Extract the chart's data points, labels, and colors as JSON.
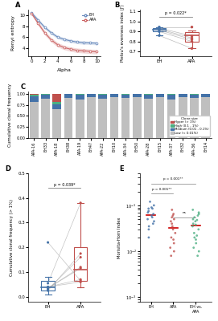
{
  "panel_A": {
    "alpha": [
      0,
      1,
      2,
      3,
      4,
      5,
      6,
      7,
      8,
      9,
      10
    ],
    "EH_mean": [
      10.4,
      9.1,
      7.8,
      6.8,
      6.0,
      5.6,
      5.3,
      5.1,
      5.0,
      4.95,
      4.9
    ],
    "EH_upper": [
      10.7,
      9.4,
      8.1,
      7.1,
      6.3,
      5.9,
      5.6,
      5.4,
      5.3,
      5.25,
      5.2
    ],
    "EH_lower": [
      10.1,
      8.8,
      7.5,
      6.5,
      5.7,
      5.3,
      5.0,
      4.8,
      4.7,
      4.65,
      4.6
    ],
    "APA_mean": [
      10.3,
      8.5,
      6.8,
      5.5,
      4.6,
      4.1,
      3.8,
      3.6,
      3.5,
      3.4,
      3.35
    ],
    "APA_upper": [
      10.6,
      8.9,
      7.2,
      5.9,
      5.0,
      4.5,
      4.2,
      4.0,
      3.9,
      3.8,
      3.75
    ],
    "APA_lower": [
      10.0,
      8.1,
      6.4,
      5.1,
      4.2,
      3.7,
      3.4,
      3.2,
      3.1,
      3.0,
      2.95
    ],
    "EH_color": "#6B8CBE",
    "APA_color": "#CC6666",
    "ylabel": "Renyi entropy",
    "xlabel": "Alpha",
    "ylim": [
      2.5,
      11.0
    ]
  },
  "panel_B": {
    "EH_box": {
      "median": 0.92,
      "q1": 0.905,
      "q3": 0.935,
      "whislo": 0.86,
      "whishi": 0.945
    },
    "APA_box": {
      "median": 0.86,
      "q1": 0.8,
      "q3": 0.895,
      "whislo": 0.73,
      "whishi": 0.91
    },
    "EH_points": [
      0.945,
      0.935,
      0.925,
      0.915,
      0.9,
      0.86
    ],
    "APA_points": [
      0.945,
      0.855,
      0.835,
      0.82,
      0.8,
      0.73
    ],
    "EH_color": "#4472A8",
    "APA_color": "#C0504D",
    "ylabel": "Pielou's evenness index (J')",
    "pvalue": "p = 0.022*",
    "ylim": [
      0.65,
      1.12
    ]
  },
  "panel_C": {
    "samples": [
      "APA-16",
      "EH33",
      "APA-18",
      "EH38",
      "APA-19",
      "EH47",
      "APA-22",
      "EH10",
      "APA-34",
      "EH50",
      "APA-28",
      "EH15",
      "APA-37",
      "EH32",
      "APA-36",
      "EH14"
    ],
    "hyper": [
      0.02,
      0.0,
      0.18,
      0.0,
      0.0,
      0.0,
      0.0,
      0.0,
      0.0,
      0.0,
      0.0,
      0.0,
      0.0,
      0.0,
      0.0,
      0.0
    ],
    "high": [
      0.04,
      0.02,
      0.06,
      0.01,
      0.03,
      0.01,
      0.02,
      0.01,
      0.02,
      0.01,
      0.02,
      0.01,
      0.03,
      0.01,
      0.02,
      0.01
    ],
    "medium": [
      0.12,
      0.1,
      0.1,
      0.08,
      0.1,
      0.07,
      0.09,
      0.07,
      0.08,
      0.07,
      0.09,
      0.06,
      0.1,
      0.07,
      0.08,
      0.07
    ],
    "low": [
      0.82,
      0.88,
      0.66,
      0.91,
      0.87,
      0.92,
      0.89,
      0.92,
      0.9,
      0.92,
      0.89,
      0.93,
      0.87,
      0.92,
      0.9,
      0.92
    ],
    "colors": [
      "#C0504D",
      "#4CAF82",
      "#4472A8",
      "#BFBFBF"
    ],
    "legend_labels": [
      "Hyper (> 1%)",
      "High (0.1 - 1%)",
      "Medium (0.01 - 0.1%)",
      "Low (< 0.01%)"
    ],
    "ylabel": "Cumulative clonal frequency",
    "ylim": [
      0,
      1.0
    ]
  },
  "panel_D": {
    "EH_box": {
      "median": 0.04,
      "q1": 0.025,
      "q3": 0.065,
      "whislo": 0.01,
      "whishi": 0.08
    },
    "APA_box": {
      "median": 0.11,
      "q1": 0.065,
      "q3": 0.2,
      "whislo": 0.04,
      "whishi": 0.38
    },
    "EH_points": [
      0.04,
      0.04,
      0.035,
      0.035,
      0.03,
      0.025,
      0.055,
      0.22
    ],
    "APA_points": [
      0.06,
      0.07,
      0.115,
      0.12,
      0.16,
      0.175,
      0.38,
      0.065
    ],
    "EH_color": "#4472A8",
    "APA_color": "#C0504D",
    "ylabel": "Cumulative clonal frequency (> 1%)",
    "pvalue": "p = 0.039*",
    "ylim": [
      -0.02,
      0.5
    ]
  },
  "panel_E": {
    "EH_points": [
      0.12,
      0.1,
      0.085,
      0.09,
      0.085,
      0.075,
      0.07,
      0.065,
      0.06,
      0.055,
      0.05,
      0.045,
      0.04,
      0.035,
      0.03,
      0.02
    ],
    "APA_points": [
      0.08,
      0.065,
      0.06,
      0.055,
      0.05,
      0.045,
      0.04,
      0.035,
      0.03,
      0.025,
      0.02,
      0.018,
      0.015,
      0.012,
      0.01,
      0.008
    ],
    "EH_APA_points": [
      0.08,
      0.07,
      0.065,
      0.06,
      0.055,
      0.05,
      0.048,
      0.045,
      0.04,
      0.038,
      0.035,
      0.03,
      0.025,
      0.022,
      0.02,
      0.018,
      0.015,
      0.012,
      0.01,
      0.008
    ],
    "EH_color": "#4472A8",
    "APA_color": "#C0504D",
    "EH_APA_color": "#4CAF82",
    "ylabel": "Morisita-Horn Index",
    "pvalue_EH_APA": "p = 0.001**",
    "pvalue_EH_EHAPA": "p = 0.001**",
    "pvalue_APA_EHAPA": "ns",
    "ylim_log": [
      0.001,
      1.0
    ]
  },
  "bg_color": "#FFFFFF"
}
